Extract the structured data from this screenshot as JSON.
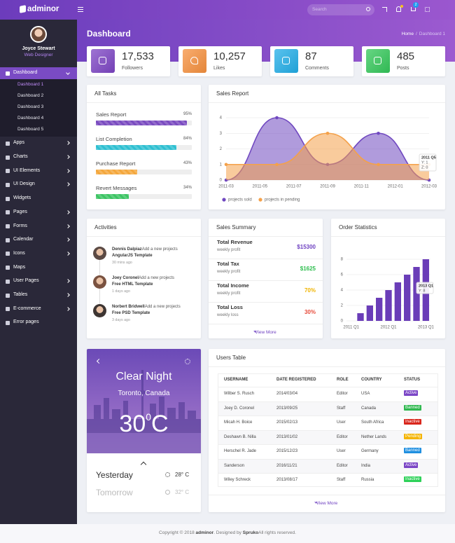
{
  "header": {
    "logo": "adminor",
    "search_placeholder": "Search",
    "notification_count": "2"
  },
  "sidebar": {
    "user_name": "Joyce Stewart",
    "user_role": "Web Designer",
    "menu": [
      {
        "label": "Dashboard",
        "children": [
          "Dashboard 1",
          "Dashboard 2",
          "Dashboard 3",
          "Dashboard 4",
          "Dashboard 5"
        ]
      },
      {
        "label": "Apps"
      },
      {
        "label": "Charts"
      },
      {
        "label": "UI Elements"
      },
      {
        "label": "UI Design"
      },
      {
        "label": "Widgets"
      },
      {
        "label": "Pages"
      },
      {
        "label": "Forms"
      },
      {
        "label": "Calendar"
      },
      {
        "label": "Icons"
      },
      {
        "label": "Maps"
      },
      {
        "label": "User Pages"
      },
      {
        "label": "Tables"
      },
      {
        "label": "E-commerce"
      },
      {
        "label": "Error pages"
      }
    ]
  },
  "page": {
    "title": "Dashboard",
    "breadcrumb": {
      "home": "Home",
      "separator": "/",
      "current": "Dashboard 1"
    }
  },
  "stats": [
    {
      "value": "17,533",
      "label": "Followers",
      "color": "#7d45c4"
    },
    {
      "value": "10,257",
      "label": "Likes",
      "color": "#f7913e"
    },
    {
      "value": "87",
      "label": "Comments",
      "color": "#22aee8"
    },
    {
      "value": "485",
      "label": "Posts",
      "color": "#34c85a"
    }
  ],
  "tasks": {
    "title": "All Tasks",
    "items": [
      {
        "label": "Sales Report",
        "percent": 95,
        "percent_label": "95%",
        "color": "#7a4bc0"
      },
      {
        "label": "List Completion",
        "percent": 84,
        "percent_label": "84%",
        "color": "#2ebfd1"
      },
      {
        "label": "Purchase Report",
        "percent": 43,
        "percent_label": "43%",
        "color": "#f4a73c"
      },
      {
        "label": "Revert Messages",
        "percent": 34,
        "percent_label": "34%",
        "color": "#3cc463"
      }
    ]
  },
  "chart_data": [
    {
      "type": "area",
      "title": "Sales Report",
      "x": [
        0,
        3,
        6,
        9,
        12
      ],
      "xlim": [
        0,
        12
      ],
      "xticks": [
        {
          "value": 0,
          "label": "2011-03"
        },
        {
          "value": 2,
          "label": "2011-05"
        },
        {
          "value": 4,
          "label": "2011-07"
        },
        {
          "value": 6,
          "label": "2011-09"
        },
        {
          "value": 8,
          "label": "2011-11"
        },
        {
          "value": 10,
          "label": "2012-01"
        },
        {
          "value": 12,
          "label": "2012-03"
        }
      ],
      "ylim": [
        0,
        4
      ],
      "yticks": [
        0,
        1,
        2,
        3,
        4
      ],
      "grid": true,
      "legend": "bottom",
      "series": [
        {
          "name": "projects sold",
          "color": "#7048c0",
          "values": [
            0,
            4,
            1,
            3,
            0
          ]
        },
        {
          "name": "projects in pending",
          "color": "#f4a14a",
          "values": [
            1,
            1,
            3,
            1,
            1
          ]
        }
      ],
      "tooltip": {
        "title": "2011 Q5",
        "lines": [
          "Y: 1",
          "Z: 0"
        ]
      }
    },
    {
      "type": "bar",
      "title": "Order Statistics",
      "categories": [
        "2011 Q1",
        null,
        null,
        null,
        "2012 Q1",
        null,
        null,
        null,
        "2013 Q1"
      ],
      "values": [
        0,
        1,
        2,
        3,
        4,
        5,
        6,
        7,
        8
      ],
      "color": "#6a3db8",
      "ylim": [
        0,
        8
      ],
      "yticks": [
        0,
        2,
        4,
        6,
        8
      ],
      "grid": true,
      "tooltip": {
        "title": "2013 Q1",
        "lines": [
          "Y: 8"
        ]
      }
    }
  ],
  "activities": {
    "title": "Activities",
    "items": [
      {
        "name": "Dennis Dalpiaz",
        "action": "Add a new projects",
        "item": "AngularJS Template",
        "time": "30 mins ago"
      },
      {
        "name": "Joey Coronel",
        "action": "Add a new projects",
        "item": "Free HTML Template",
        "time": "1 days ago"
      },
      {
        "name": "Norbert Bridwell",
        "action": "Add a new projects",
        "item": "Free PSD Template",
        "time": "3 days ago"
      }
    ]
  },
  "sales_summary": {
    "title": "Sales Summary",
    "items": [
      {
        "label": "Total Revenue",
        "sub": "weekly profit",
        "value": "$15300",
        "color": "#6f42c1"
      },
      {
        "label": "Total Tax",
        "sub": "weekly profit",
        "value": "$1625",
        "color": "#2dbe4e"
      },
      {
        "label": "Total Income",
        "sub": "weekly profit",
        "value": "70%",
        "color": "#f0b400"
      },
      {
        "label": "Total Loss",
        "sub": "weekly loss",
        "value": "30%",
        "color": "#e74c3c"
      }
    ],
    "more": "View More"
  },
  "weather": {
    "condition": "Clear Night",
    "location": "Toronto, Canada",
    "temperature": "30",
    "degree": "0",
    "unit": "C",
    "forecast": [
      {
        "day": "Yesterday",
        "temp": "28° C"
      },
      {
        "day": "Tomorrow",
        "temp": "32° C"
      }
    ]
  },
  "users_table": {
    "title": "Users Table",
    "columns": [
      "USERNAME",
      "DATE REGISTERED",
      "ROLE",
      "COUNTRY",
      "STATUS"
    ],
    "rows": [
      [
        "Wilber S. Rusch",
        "2014/03/04",
        "Editor",
        "USA",
        "Active"
      ],
      [
        "Joey D. Coronel",
        "2013/09/25",
        "Staff",
        "Canada",
        "Banned"
      ],
      [
        "Micah H. Boice",
        "2015/02/13",
        "User",
        "South Africa",
        "Inactive"
      ],
      [
        "Deshawn B. Nilla",
        "2013/01/02",
        "Editor",
        "Nether Lands",
        "Pending"
      ],
      [
        "Herschel R. Jade",
        "2015/12/23",
        "User",
        "Germany",
        "Banned"
      ],
      [
        "Sanderson",
        "2016/11/21",
        "Editor",
        "India",
        "Active"
      ],
      [
        "Wiley Schreck",
        "2013/08/17",
        "Staff",
        "Russia",
        "Inactive"
      ]
    ],
    "status_colors": [
      "#7b46c6",
      "#2fb84f",
      "#d9261c",
      "#f4b400",
      "#1f8fe0",
      "#7b46c6",
      "#2ed159"
    ],
    "more": "View More"
  },
  "footer": {
    "copyright": "Copyright © 2018 ",
    "brand": "adminor",
    "designed": ". Designed by ",
    "designer": "Spruko",
    "rights": "All rights reserved."
  }
}
